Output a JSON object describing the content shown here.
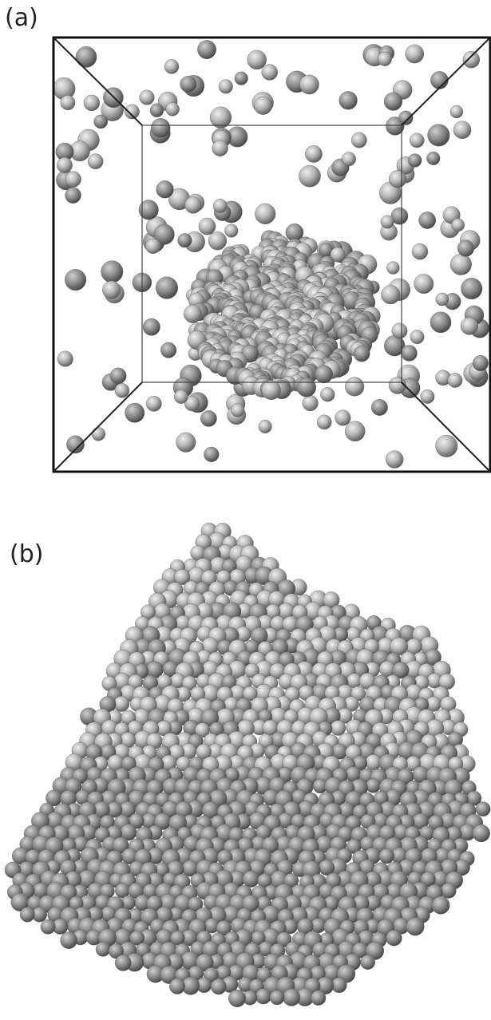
{
  "panels": [
    {
      "label": "(a)"
    },
    {
      "label": "(b)"
    }
  ],
  "colors": {
    "background": "#ffffff",
    "frame": "#111111",
    "sphere_light": "#e8e8e8",
    "sphere_mid": "#a9a9a9",
    "sphere_dark": "#555555"
  }
}
